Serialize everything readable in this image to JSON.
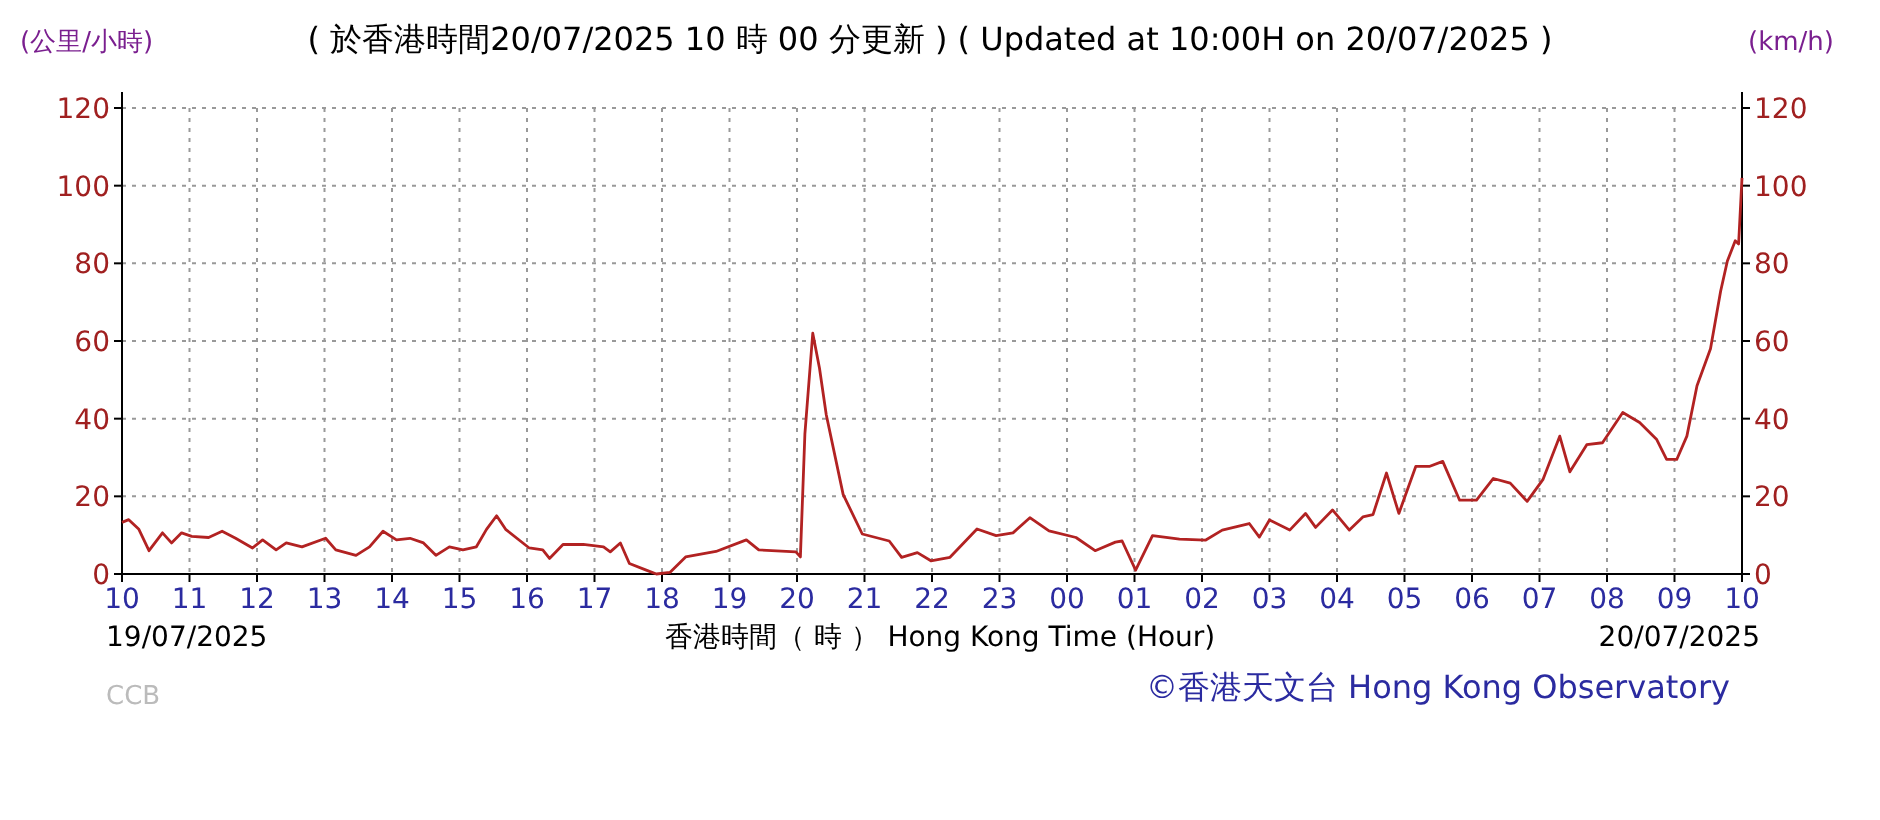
{
  "chart_data": {
    "type": "line",
    "title": "( 於香港時間20/07/2025 10 時 00 分更新 ) ( Updated at 10:00H on 20/07/2025 )",
    "xlabel": "香港時間（ 時 ） Hong Kong Time (Hour)",
    "ylabel": "(公里/小時)",
    "y2label": "(km/h)",
    "annotations": [
      "19/07/2025",
      "20/07/2025",
      "CCB",
      "©香港天文台 Hong Kong Observatory"
    ],
    "xlim": [
      "2025-07-19T10:00",
      "2025-07-20T10:00"
    ],
    "ylim": [
      0,
      120
    ],
    "y2lim": [
      0,
      120
    ],
    "xticks": [
      {
        "value": "2025-07-19T10:00",
        "label": "10"
      },
      {
        "value": "2025-07-19T11:00",
        "label": "11"
      },
      {
        "value": "2025-07-19T12:00",
        "label": "12"
      },
      {
        "value": "2025-07-19T13:00",
        "label": "13"
      },
      {
        "value": "2025-07-19T14:00",
        "label": "14"
      },
      {
        "value": "2025-07-19T15:00",
        "label": "15"
      },
      {
        "value": "2025-07-19T16:00",
        "label": "16"
      },
      {
        "value": "2025-07-19T17:00",
        "label": "17"
      },
      {
        "value": "2025-07-19T18:00",
        "label": "18"
      },
      {
        "value": "2025-07-19T19:00",
        "label": "19"
      },
      {
        "value": "2025-07-19T20:00",
        "label": "20"
      },
      {
        "value": "2025-07-19T21:00",
        "label": "21"
      },
      {
        "value": "2025-07-19T22:00",
        "label": "22"
      },
      {
        "value": "2025-07-19T23:00",
        "label": "23"
      },
      {
        "value": "2025-07-20T00:00",
        "label": "00"
      },
      {
        "value": "2025-07-20T01:00",
        "label": "01"
      },
      {
        "value": "2025-07-20T02:00",
        "label": "02"
      },
      {
        "value": "2025-07-20T03:00",
        "label": "03"
      },
      {
        "value": "2025-07-20T04:00",
        "label": "04"
      },
      {
        "value": "2025-07-20T05:00",
        "label": "05"
      },
      {
        "value": "2025-07-20T06:00",
        "label": "06"
      },
      {
        "value": "2025-07-20T07:00",
        "label": "07"
      },
      {
        "value": "2025-07-20T08:00",
        "label": "08"
      },
      {
        "value": "2025-07-20T09:00",
        "label": "09"
      },
      {
        "value": "2025-07-20T10:00",
        "label": "10"
      }
    ],
    "yticks": [
      0,
      20,
      40,
      60,
      80,
      100,
      120
    ],
    "y2ticks": [
      0,
      20,
      40,
      60,
      80,
      100,
      120
    ],
    "grid": true,
    "marker": "none",
    "line_style": "solid",
    "series": [
      {
        "color": "#b22222",
        "x": [
          "2025-07-19T10:00",
          "2025-07-19T10:06",
          "2025-07-19T10:15",
          "2025-07-19T10:24",
          "2025-07-19T10:36",
          "2025-07-19T10:44",
          "2025-07-19T10:53",
          "2025-07-19T11:02",
          "2025-07-19T11:17",
          "2025-07-19T11:29",
          "2025-07-19T11:41",
          "2025-07-19T11:56",
          "2025-07-19T12:05",
          "2025-07-19T12:17",
          "2025-07-19T12:26",
          "2025-07-19T12:40",
          "2025-07-19T13:01",
          "2025-07-19T13:10",
          "2025-07-19T13:28",
          "2025-07-19T13:40",
          "2025-07-19T13:52",
          "2025-07-19T14:04",
          "2025-07-19T14:16",
          "2025-07-19T14:28",
          "2025-07-19T14:39",
          "2025-07-19T14:51",
          "2025-07-19T15:03",
          "2025-07-19T15:15",
          "2025-07-19T15:24",
          "2025-07-19T15:33",
          "2025-07-19T15:41",
          "2025-07-19T16:02",
          "2025-07-19T16:14",
          "2025-07-19T16:20",
          "2025-07-19T16:32",
          "2025-07-19T16:50",
          "2025-07-19T17:08",
          "2025-07-19T17:14",
          "2025-07-19T17:23",
          "2025-07-19T17:31",
          "2025-07-19T17:46",
          "2025-07-19T17:55",
          "2025-07-19T18:07",
          "2025-07-19T18:21",
          "2025-07-19T18:48",
          "2025-07-19T19:15",
          "2025-07-19T19:26",
          "2025-07-19T19:59",
          "2025-07-19T20:03",
          "2025-07-19T20:07",
          "2025-07-19T20:14",
          "2025-07-19T20:20",
          "2025-07-19T20:26",
          "2025-07-19T20:41",
          "2025-07-19T20:58",
          "2025-07-19T21:22",
          "2025-07-19T21:33",
          "2025-07-19T21:47",
          "2025-07-19T21:59",
          "2025-07-19T22:16",
          "2025-07-19T22:40",
          "2025-07-19T22:57",
          "2025-07-19T23:12",
          "2025-07-19T23:27",
          "2025-07-19T23:44",
          "2025-07-20T00:08",
          "2025-07-20T00:25",
          "2025-07-20T00:43",
          "2025-07-20T00:49",
          "2025-07-20T01:01",
          "2025-07-20T01:16",
          "2025-07-20T01:40",
          "2025-07-20T02:03",
          "2025-07-20T02:18",
          "2025-07-20T02:42",
          "2025-07-20T02:51",
          "2025-07-20T03:00",
          "2025-07-20T03:18",
          "2025-07-20T03:32",
          "2025-07-20T03:41",
          "2025-07-20T03:56",
          "2025-07-20T04:11",
          "2025-07-20T04:23",
          "2025-07-20T04:32",
          "2025-07-20T04:44",
          "2025-07-20T04:55",
          "2025-07-20T05:10",
          "2025-07-20T05:22",
          "2025-07-20T05:34",
          "2025-07-20T05:49",
          "2025-07-20T06:04",
          "2025-07-20T06:19",
          "2025-07-20T06:34",
          "2025-07-20T06:49",
          "2025-07-20T07:03",
          "2025-07-20T07:18",
          "2025-07-20T07:27",
          "2025-07-20T07:42",
          "2025-07-20T07:56",
          "2025-07-20T08:14",
          "2025-07-20T08:29",
          "2025-07-20T08:44",
          "2025-07-20T08:53",
          "2025-07-20T09:02",
          "2025-07-20T09:11",
          "2025-07-20T09:20",
          "2025-07-20T09:32",
          "2025-07-20T09:41",
          "2025-07-20T09:47",
          "2025-07-20T09:54",
          "2025-07-20T09:57",
          "2025-07-20T10:00"
        ],
        "values": [
          13.3,
          14,
          11.5,
          6,
          10.6,
          8,
          10.6,
          9.7,
          9.4,
          11,
          9.2,
          6.7,
          8.8,
          6.2,
          8,
          7,
          9.2,
          6.2,
          4.8,
          7,
          11,
          8.8,
          9.2,
          8,
          4.8,
          7,
          6.2,
          7,
          11.5,
          15,
          11.5,
          6.7,
          6.2,
          4,
          7.6,
          7.6,
          7,
          5.7,
          8,
          2.7,
          1,
          0,
          0.4,
          4.4,
          5.8,
          8.8,
          6.2,
          5.7,
          4.4,
          36,
          62,
          53,
          41,
          20.5,
          10.3,
          8.5,
          4.3,
          5.5,
          3.4,
          4.3,
          11.6,
          9.9,
          10.6,
          14.5,
          11.1,
          9.4,
          6,
          8.2,
          8.5,
          1,
          9.9,
          9,
          8.7,
          11.3,
          13,
          9.5,
          13.9,
          11.3,
          15.6,
          12,
          16.5,
          11.3,
          14.7,
          15.3,
          26,
          15.6,
          27.7,
          27.7,
          29,
          19,
          19,
          24.6,
          23.4,
          18.7,
          24.3,
          35.5,
          26.3,
          33.3,
          33.8,
          41.6,
          39,
          34.7,
          29.5,
          29.5,
          35.5,
          48.5,
          58,
          72.8,
          80.6,
          85.8,
          85,
          102
        ]
      }
    ]
  }
}
